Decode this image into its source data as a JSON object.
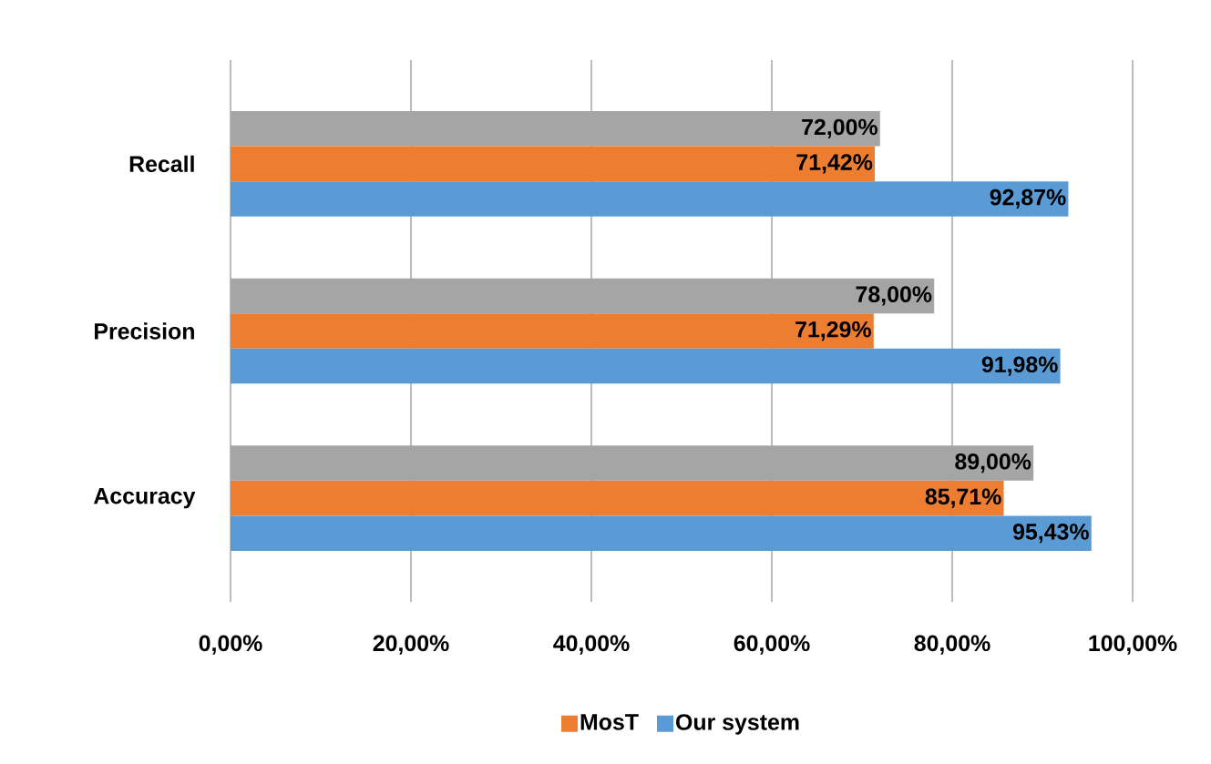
{
  "chart_data": {
    "type": "bar",
    "orientation": "horizontal",
    "categories": [
      "Recall",
      "Precision",
      "Accuracy"
    ],
    "series": [
      {
        "color": "#a5a5a5",
        "values": [
          72.0,
          78.0,
          89.0
        ],
        "value_labels": [
          "72,00%",
          "78,00%",
          "89,00%"
        ]
      },
      {
        "name": "MosT",
        "color": "#ed7d31",
        "values": [
          71.42,
          71.29,
          85.71
        ],
        "value_labels": [
          "71,42%",
          "71,29%",
          "85,71%"
        ]
      },
      {
        "name": "Our system",
        "color": "#5b9bd5",
        "values": [
          92.87,
          91.98,
          95.43
        ],
        "value_labels": [
          "92,87%",
          "91,98%",
          "95,43%"
        ]
      }
    ],
    "xlim": [
      0,
      100
    ],
    "xticks": [
      {
        "value": 0,
        "label": "0,00%"
      },
      {
        "value": 20,
        "label": "20,00%"
      },
      {
        "value": 40,
        "label": "40,00%"
      },
      {
        "value": 60,
        "label": "60,00%"
      },
      {
        "value": 80,
        "label": "80,00%"
      },
      {
        "value": 100,
        "label": "100,00%"
      }
    ],
    "grid": "x",
    "legend": "bottom"
  }
}
